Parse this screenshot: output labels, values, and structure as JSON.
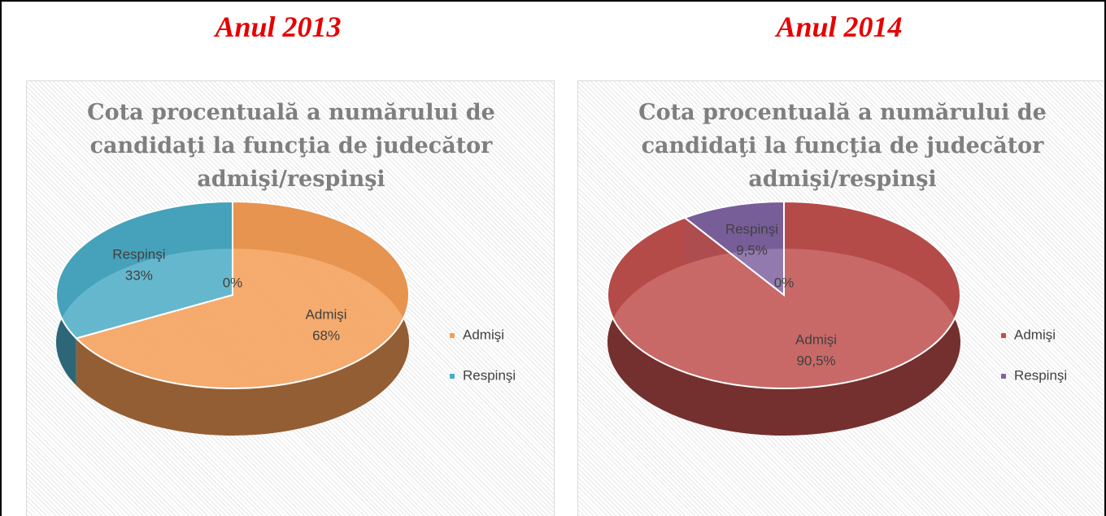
{
  "headings": [
    "Anul 2013",
    "Anul 2014"
  ],
  "chart_data": [
    {
      "type": "pie",
      "title": "Cota procentuală a numărului de candidaţi la funcţia de judecător admişi/respinşi",
      "categories": [
        "Admişi",
        "Respinşi",
        null
      ],
      "values": [
        68,
        33,
        0
      ],
      "value_labels": [
        "68%",
        "33%",
        "0%"
      ],
      "colors": [
        "#f59d56",
        "#4bacc6",
        "#a5a5a5"
      ],
      "legend": "right"
    },
    {
      "type": "pie",
      "title": "Cota procentuală a numărului de candidaţi la funcţia de judecător admişi/respinşi",
      "categories": [
        "Admişi",
        "Respinşi",
        null
      ],
      "values": [
        90.5,
        9.5,
        0
      ],
      "value_labels": [
        "90,5%",
        "9,5%",
        "0%"
      ],
      "colors": [
        "#c0504d",
        "#8064a2",
        "#a5a5a5"
      ],
      "legend": "right"
    }
  ]
}
